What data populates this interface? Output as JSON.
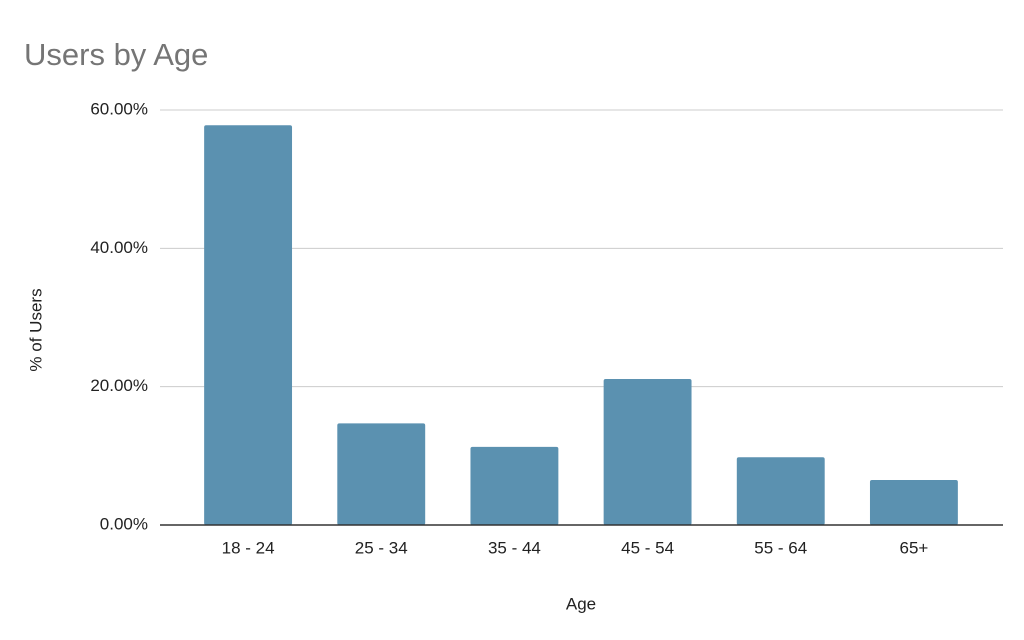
{
  "chart_data": {
    "type": "bar",
    "title": "Users by Age",
    "x_label": "Age",
    "y_label": "% of Users",
    "categories": [
      "18 - 24",
      "25 - 34",
      "35 - 44",
      "45 - 54",
      "55 - 64",
      "65+"
    ],
    "values": [
      57.8,
      14.7,
      11.3,
      21.1,
      9.8,
      6.5
    ],
    "color": "#5b91b0",
    "ylim": [
      0,
      60
    ],
    "yticks": [
      {
        "value": 0,
        "label": "0.00%"
      },
      {
        "value": 20,
        "label": "20.00%"
      },
      {
        "value": 40,
        "label": "40.00%"
      },
      {
        "value": 60,
        "label": "60.00%"
      }
    ],
    "grid": true
  }
}
